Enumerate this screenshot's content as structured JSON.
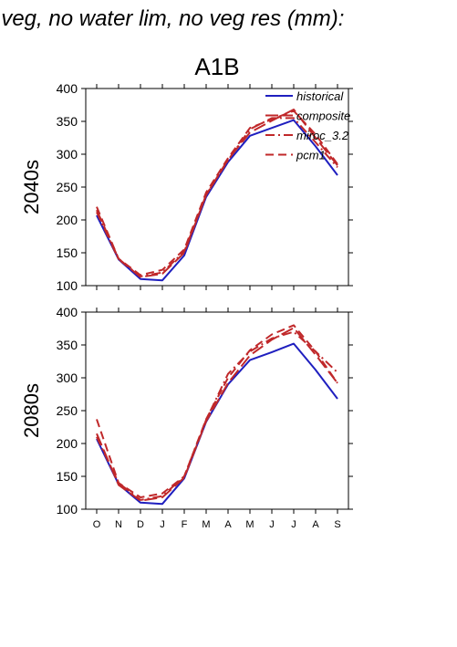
{
  "figure": {
    "title": "f veg, no water lim, no veg res (mm):",
    "scenario": "A1B"
  },
  "colors": {
    "historical": "#1f1fbf",
    "composite": "#c0282a",
    "miroc_3.2": "#c0282a",
    "pcm1": "#c0282a"
  },
  "chart_data": [
    {
      "type": "line",
      "title": "A1B",
      "ylabel": "2040s",
      "xlabel": "",
      "categories": [
        "O",
        "N",
        "D",
        "J",
        "F",
        "M",
        "A",
        "M",
        "J",
        "J",
        "A",
        "S"
      ],
      "ylim": [
        100,
        400
      ],
      "yticks": [
        100,
        150,
        200,
        250,
        300,
        350,
        400
      ],
      "legend_position": "top-right",
      "series": [
        {
          "name": "historical",
          "style": "solid",
          "values": [
            207,
            140,
            110,
            108,
            146,
            235,
            288,
            328,
            340,
            352,
            312,
            268
          ]
        },
        {
          "name": "composite",
          "style": "longdash",
          "values": [
            215,
            141,
            113,
            118,
            150,
            238,
            292,
            333,
            351,
            368,
            325,
            283
          ]
        },
        {
          "name": "miroc_3.2",
          "style": "dashdot",
          "values": [
            212,
            140,
            114,
            120,
            152,
            238,
            291,
            338,
            355,
            355,
            318,
            280
          ]
        },
        {
          "name": "pcm1",
          "style": "dashdash",
          "values": [
            220,
            141,
            116,
            124,
            155,
            242,
            294,
            340,
            353,
            366,
            330,
            285
          ]
        }
      ]
    },
    {
      "type": "line",
      "title": "",
      "ylabel": "2080s",
      "xlabel": "",
      "categories": [
        "O",
        "N",
        "D",
        "J",
        "F",
        "M",
        "A",
        "M",
        "J",
        "J",
        "A",
        "S"
      ],
      "ylim": [
        100,
        400
      ],
      "yticks": [
        100,
        150,
        200,
        250,
        300,
        350,
        400
      ],
      "series": [
        {
          "name": "historical",
          "style": "solid",
          "values": [
            207,
            138,
            110,
            108,
            147,
            233,
            290,
            327,
            339,
            352,
            312,
            268
          ]
        },
        {
          "name": "composite",
          "style": "longdash",
          "values": [
            215,
            137,
            113,
            118,
            148,
            234,
            292,
            334,
            358,
            376,
            335,
            292
          ]
        },
        {
          "name": "miroc_3.2",
          "style": "dashdot",
          "values": [
            210,
            140,
            114,
            120,
            150,
            236,
            306,
            340,
            360,
            370,
            340,
            308
          ]
        },
        {
          "name": "pcm1",
          "style": "dashdash",
          "values": [
            237,
            140,
            118,
            124,
            150,
            237,
            300,
            342,
            366,
            380,
            340,
            292
          ]
        }
      ]
    }
  ]
}
